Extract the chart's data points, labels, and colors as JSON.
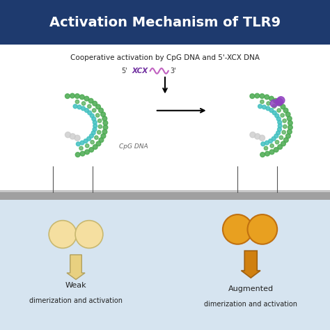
{
  "title": "Activation Mechanism of TLR9",
  "title_bg": "#1e3a6e",
  "title_color": "#ffffff",
  "subtitle": "Cooperative activation by CpG DNA and 5'-XCX DNA",
  "background_color": "#ffffff",
  "bottom_bg": "#d6e4f0",
  "membrane_color": "#a0a0a0",
  "membrane_top_color": "#c8c8c8",
  "weak_label1": "Weak",
  "weak_label2": "dimerization and activation",
  "augmented_label1": "Augmented",
  "augmented_label2": "dimerization and activation",
  "cpg_label": "CpG DNA",
  "dna_label_5": "5'",
  "dna_label_3": "3'",
  "dna_xcx": "XCX",
  "weak_circle_color": "#f5dfa0",
  "weak_circle_edge": "#c8b870",
  "aug_circle_color": "#e8a020",
  "aug_circle_edge": "#c07010",
  "weak_arrow_color": "#e8d080",
  "aug_arrow_color": "#d08010",
  "tlr_colors": {
    "green": "#4aaa50",
    "cyan": "#40c0c0",
    "gray": "#a0a0a0",
    "purple": "#9040c0"
  }
}
